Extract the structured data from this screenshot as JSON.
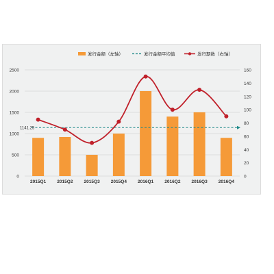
{
  "colors": {
    "bar": "#f59a38",
    "line": "#c0202a",
    "average": "#1f8a8a",
    "grid": "#d6d6d6",
    "text": "#333333",
    "background": "#f0f1f1"
  },
  "legend": {
    "bar_label": "发行金额（左轴）",
    "average_label": "发行金额平均值",
    "line_label": "发行期数（右轴）"
  },
  "chart_data": {
    "type": "bar",
    "categories": [
      "2015Q1",
      "2015Q2",
      "2015Q3",
      "2015Q4",
      "2016Q1",
      "2016Q2",
      "2016Q3",
      "2016Q4"
    ],
    "series": [
      {
        "name": "发行金额（左轴）",
        "type": "bar",
        "axis": "left",
        "values": [
          900,
          920,
          500,
          1000,
          2000,
          1400,
          1500,
          900
        ]
      },
      {
        "name": "发行金额平均值",
        "type": "line-dashed",
        "axis": "left",
        "values": [
          1141.25,
          1141.25,
          1141.25,
          1141.25,
          1141.25,
          1141.25,
          1141.25,
          1141.25
        ]
      },
      {
        "name": "发行期数（右轴）",
        "type": "line-smooth",
        "axis": "right",
        "values": [
          85,
          70,
          50,
          82,
          150,
          100,
          130,
          90
        ]
      }
    ],
    "average_label": "1141.25",
    "y_left": {
      "ylim": [
        0,
        2500
      ],
      "ticks": [
        0,
        500,
        1000,
        1500,
        2000,
        2500
      ]
    },
    "y_right": {
      "ylim": [
        0,
        160
      ],
      "ticks": [
        0,
        20,
        40,
        60,
        80,
        100,
        120,
        140,
        160
      ]
    },
    "grid": true,
    "legend_position": "top"
  }
}
